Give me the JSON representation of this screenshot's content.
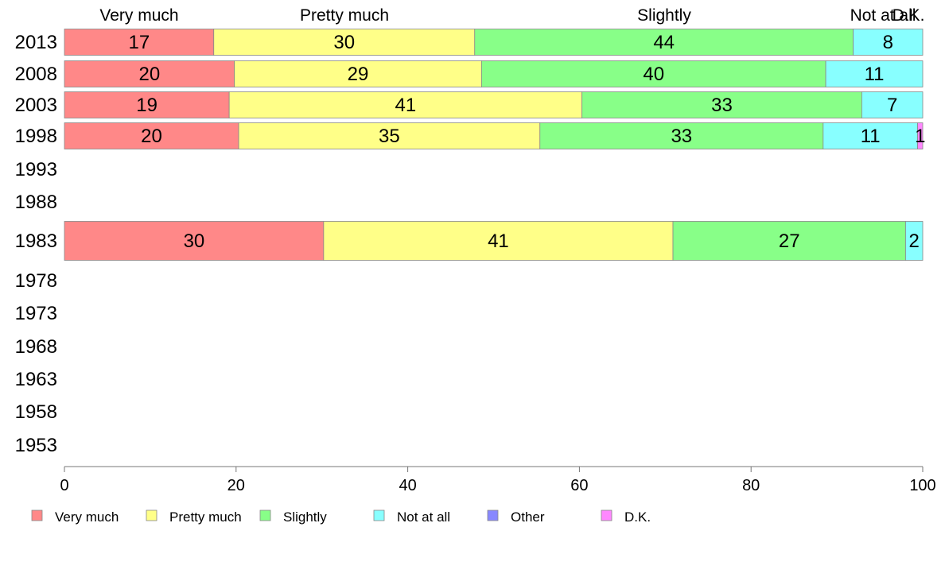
{
  "chart_data": {
    "type": "bar",
    "orientation": "horizontal",
    "stacked": true,
    "categories": [
      "2013",
      "2008",
      "2003",
      "1998",
      "1993",
      "1988",
      "1983",
      "1978",
      "1973",
      "1968",
      "1963",
      "1958",
      "1953"
    ],
    "series": [
      {
        "name": "Very much",
        "color": "#ff8888",
        "values": [
          17.4,
          19.8,
          19.2,
          20.3,
          null,
          null,
          30.2,
          null,
          null,
          null,
          null,
          null,
          null
        ],
        "labels": [
          "17",
          "20",
          "19",
          "20",
          "",
          "",
          "30",
          "",
          "",
          "",
          "",
          "",
          ""
        ]
      },
      {
        "name": "Pretty much",
        "color": "#ffff88",
        "values": [
          30.4,
          28.8,
          41.1,
          35.1,
          null,
          null,
          40.7,
          null,
          null,
          null,
          null,
          null,
          null
        ],
        "labels": [
          "30",
          "29",
          "41",
          "35",
          "",
          "",
          "41",
          "",
          "",
          "",
          "",
          "",
          ""
        ]
      },
      {
        "name": "Slightly",
        "color": "#88ff88",
        "values": [
          44.1,
          40.1,
          32.6,
          33.0,
          null,
          null,
          27.1,
          null,
          null,
          null,
          null,
          null,
          null
        ],
        "labels": [
          "44",
          "40",
          "33",
          "33",
          "",
          "",
          "27",
          "",
          "",
          "",
          "",
          "",
          ""
        ]
      },
      {
        "name": "Not at all",
        "color": "#88ffff",
        "values": [
          8.1,
          11.3,
          7.1,
          11.0,
          null,
          null,
          2.0,
          null,
          null,
          null,
          null,
          null,
          null
        ],
        "labels": [
          "8",
          "11",
          "7",
          "11",
          "",
          "",
          "2",
          "",
          "",
          "",
          "",
          "",
          ""
        ]
      },
      {
        "name": "Other",
        "color": "#8888ff",
        "values": [
          0,
          0,
          0,
          0,
          null,
          null,
          0,
          null,
          null,
          null,
          null,
          null,
          null
        ],
        "labels": [
          "",
          "",
          "",
          "",
          "",
          "",
          "",
          "",
          "",
          "",
          "",
          "",
          ""
        ]
      },
      {
        "name": "D.K.",
        "color": "#ff88ff",
        "values": [
          0,
          0,
          0,
          0.6,
          null,
          null,
          0,
          null,
          null,
          null,
          null,
          null,
          null
        ],
        "labels": [
          "",
          "",
          "",
          "1",
          "",
          "",
          "",
          "",
          "",
          "",
          "",
          "",
          ""
        ]
      }
    ],
    "top_labels": [
      "Very much",
      "Pretty much",
      "Slightly",
      "Not at all",
      "D.K."
    ],
    "xlim": [
      0,
      100
    ],
    "xticks": [
      0,
      20,
      40,
      60,
      80,
      100
    ],
    "grid": false,
    "legend": "bottom"
  }
}
